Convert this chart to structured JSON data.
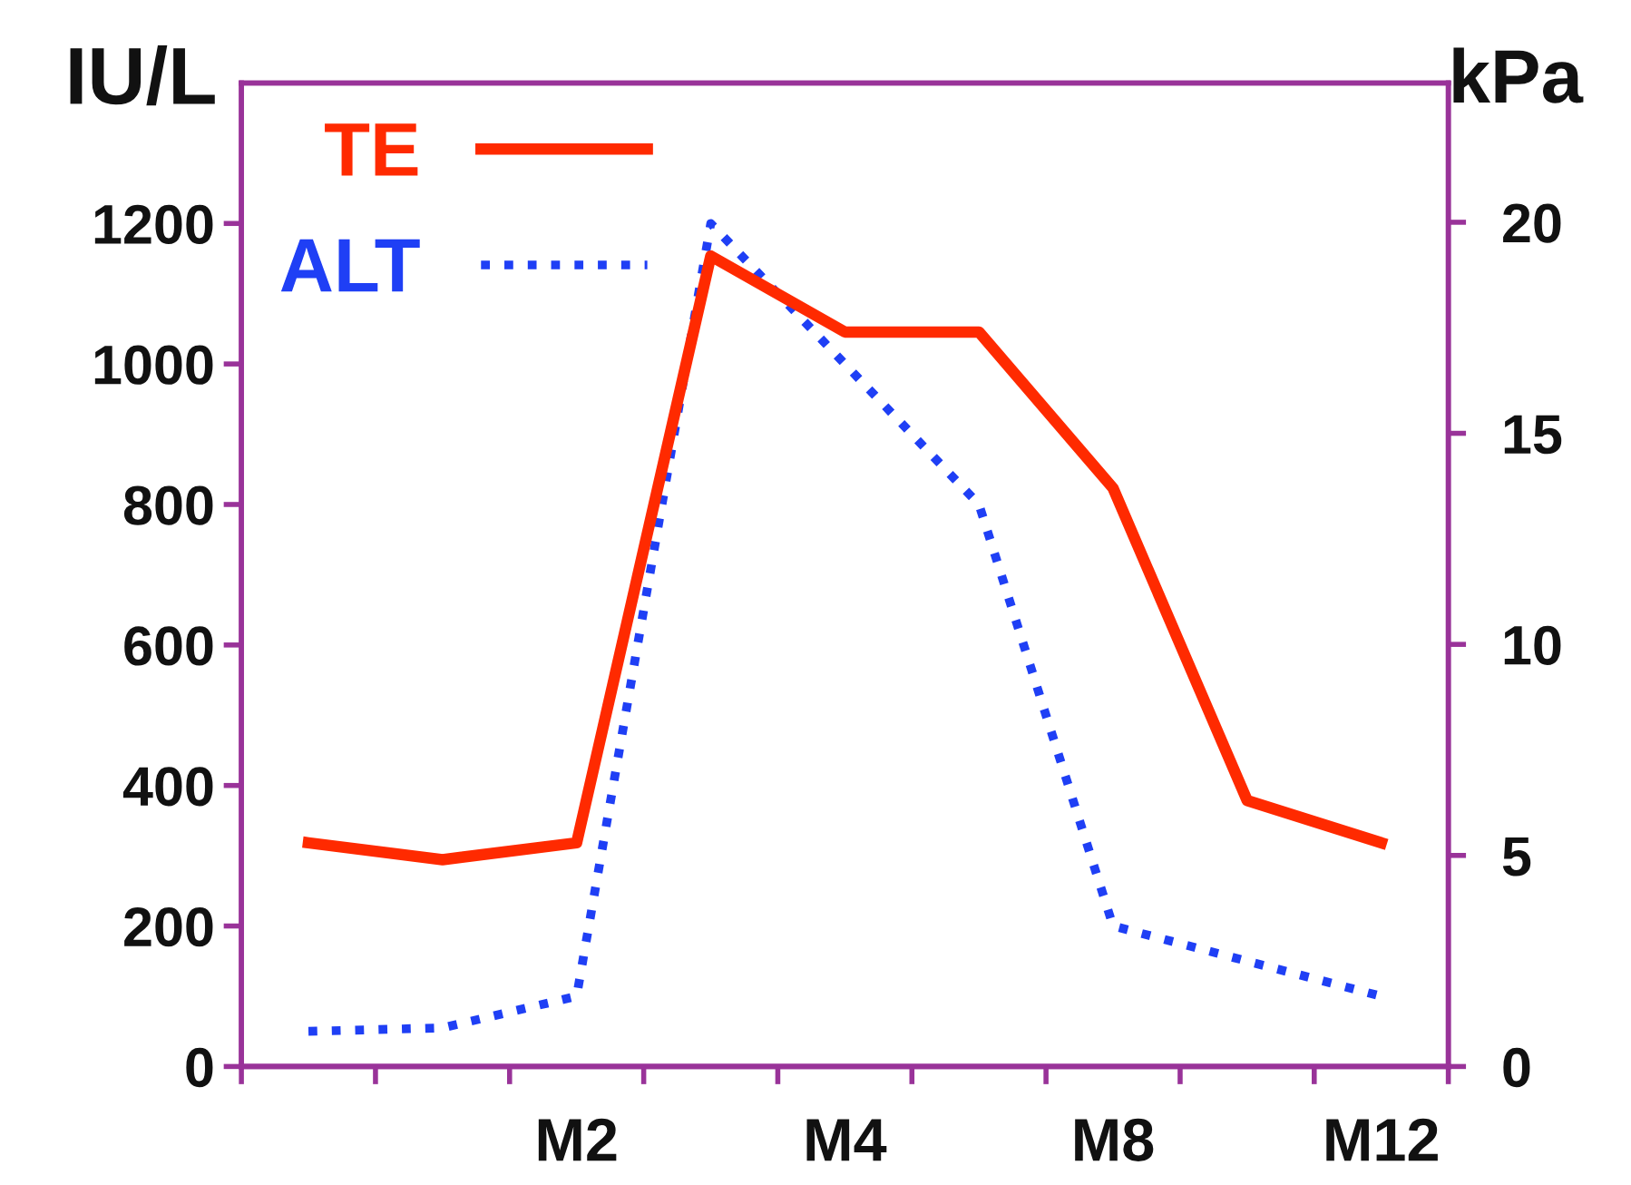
{
  "chart_data": {
    "type": "line",
    "categories": [
      null,
      null,
      "M2",
      null,
      "M4",
      null,
      "M8",
      null,
      "M12"
    ],
    "ylabel": "IU/L",
    "y2label": "kPa",
    "ylim": [
      0,
      1400
    ],
    "yticks": [
      0,
      200,
      400,
      600,
      800,
      1000,
      1200
    ],
    "y2lim": [
      0,
      23.3
    ],
    "y2ticks": [
      0,
      5,
      10,
      15,
      20
    ],
    "series": [
      {
        "name": "TE",
        "color": "#ff2a00",
        "axis": "y2",
        "line_style": "solid",
        "values": [
          5.3,
          4.9,
          5.3,
          19.2,
          17.4,
          17.4,
          13.7,
          6.3,
          5.3
        ]
      },
      {
        "name": "ALT",
        "color": "#1f3ff5",
        "axis": "y",
        "line_style": "dotted",
        "values": [
          50,
          55,
          100,
          1200,
          1000,
          800,
          200,
          150,
          100
        ]
      }
    ],
    "legend": "top left",
    "grid": false,
    "marker": "none"
  }
}
